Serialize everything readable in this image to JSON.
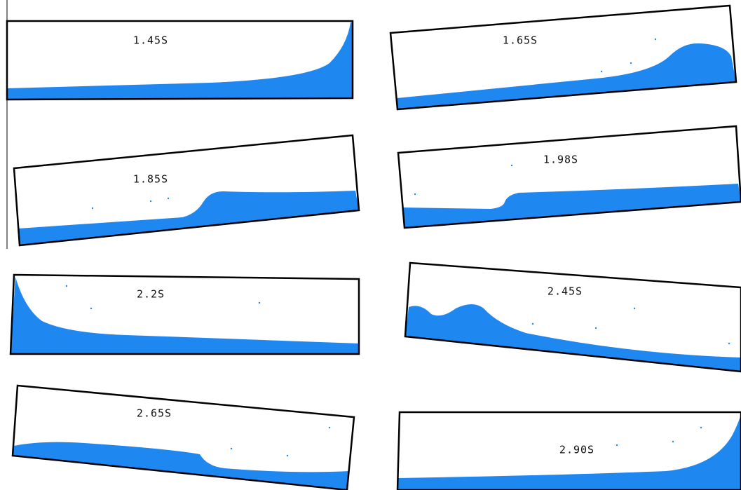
{
  "panels": [
    {
      "label": "1.45S"
    },
    {
      "label": "1.65S"
    },
    {
      "label": "1.85S"
    },
    {
      "label": "1.98S"
    },
    {
      "label": "2.2S"
    },
    {
      "label": "2.45S"
    },
    {
      "label": "2.65S"
    },
    {
      "label": "2.90S"
    }
  ]
}
